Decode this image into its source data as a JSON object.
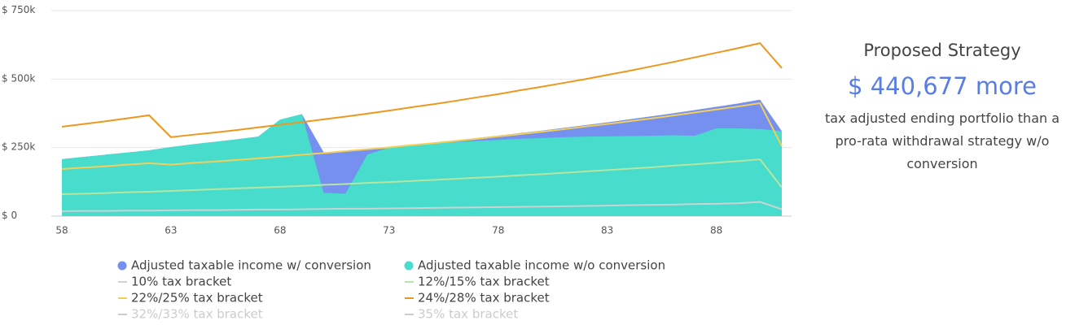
{
  "chart_data": {
    "type": "line",
    "x": [
      58,
      59,
      60,
      61,
      62,
      63,
      64,
      65,
      66,
      67,
      68,
      69,
      70,
      71,
      72,
      73,
      74,
      75,
      76,
      77,
      78,
      79,
      80,
      81,
      82,
      83,
      84,
      85,
      86,
      87,
      88,
      89,
      90,
      91
    ],
    "xlim": [
      58,
      91
    ],
    "xticks": [
      58,
      63,
      68,
      73,
      78,
      83,
      88
    ],
    "ylim": [
      0,
      750000
    ],
    "yticks": [
      {
        "value": 0,
        "label": "$ 0"
      },
      {
        "value": 250000,
        "label": "$ 250k"
      },
      {
        "value": 500000,
        "label": "$ 500k"
      },
      {
        "value": 750000,
        "label": "$ 750k"
      }
    ],
    "grid": true,
    "series": [
      {
        "name": "Adjusted taxable income w/ conversion",
        "kind": "area",
        "color": "#7590ee",
        "values": [
          208000,
          216000,
          224000,
          232000,
          240000,
          252000,
          262000,
          271000,
          280000,
          290000,
          352000,
          372000,
          233000,
          238000,
          245000,
          252000,
          260000,
          268000,
          276000,
          285000,
          294000,
          303000,
          312000,
          322000,
          332000,
          342000,
          353000,
          364000,
          375000,
          387000,
          399000,
          411000,
          425000,
          310000
        ]
      },
      {
        "name": "Adjusted taxable income w/o conversion",
        "kind": "area",
        "color": "#47dccb",
        "values": [
          208000,
          216000,
          224000,
          232000,
          240000,
          252000,
          262000,
          271000,
          280000,
          290000,
          352000,
          372000,
          85000,
          82000,
          225000,
          250000,
          258000,
          265000,
          270000,
          274000,
          278000,
          282000,
          285000,
          288000,
          290000,
          291000,
          292000,
          293000,
          295000,
          293000,
          320000,
          320000,
          318000,
          310000
        ]
      },
      {
        "name": "10% tax bracket",
        "kind": "line",
        "color": "#c9d4d3",
        "values": [
          18000,
          19000,
          19000,
          20000,
          20000,
          21000,
          22000,
          22000,
          23000,
          24000,
          24000,
          25000,
          26000,
          27000,
          27000,
          28000,
          29000,
          30000,
          31000,
          32000,
          33000,
          34000,
          35000,
          36000,
          37000,
          38000,
          40000,
          41000,
          42000,
          44000,
          45000,
          47000,
          52000,
          25000
        ]
      },
      {
        "name": "12%/15% tax bracket",
        "kind": "line",
        "color": "#b5e6a3",
        "values": [
          80000,
          82000,
          84000,
          87000,
          89000,
          92000,
          95000,
          98000,
          101000,
          104000,
          107000,
          110000,
          114000,
          117000,
          121000,
          124000,
          128000,
          132000,
          136000,
          140000,
          144000,
          149000,
          153000,
          158000,
          163000,
          168000,
          173000,
          178000,
          184000,
          189000,
          195000,
          201000,
          207000,
          105000
        ]
      },
      {
        "name": "22%/25% tax bracket",
        "kind": "line",
        "color": "#f4cf58",
        "values": [
          172000,
          177000,
          182000,
          188000,
          193000,
          188000,
          194000,
          199000,
          205000,
          211000,
          217000,
          224000,
          230000,
          237000,
          244000,
          251000,
          259000,
          266000,
          274000,
          282000,
          291000,
          299000,
          308000,
          317000,
          327000,
          336000,
          346000,
          356000,
          367000,
          378000,
          389000,
          400000,
          412000,
          255000
        ]
      },
      {
        "name": "24%/28% tax bracket",
        "kind": "line",
        "color": "#ec981f",
        "values": [
          326000,
          336000,
          346000,
          357000,
          368000,
          288000,
          297000,
          305000,
          314000,
          324000,
          333000,
          343000,
          353000,
          363000,
          374000,
          385000,
          397000,
          408000,
          420000,
          433000,
          445000,
          459000,
          472000,
          486000,
          500000,
          515000,
          530000,
          546000,
          562000,
          579000,
          596000,
          613000,
          631000,
          540000
        ]
      },
      {
        "name": "32%/33% tax bracket",
        "kind": "line",
        "color": "#cccccc",
        "hidden": true
      },
      {
        "name": "35% tax bracket",
        "kind": "line",
        "color": "#cccccc",
        "hidden": true
      }
    ]
  },
  "panel": {
    "title": "Proposed Strategy",
    "amount": "$ 440,677 more",
    "description": "tax adjusted ending portfolio than a pro-rata withdrawal strategy w/o conversion"
  }
}
